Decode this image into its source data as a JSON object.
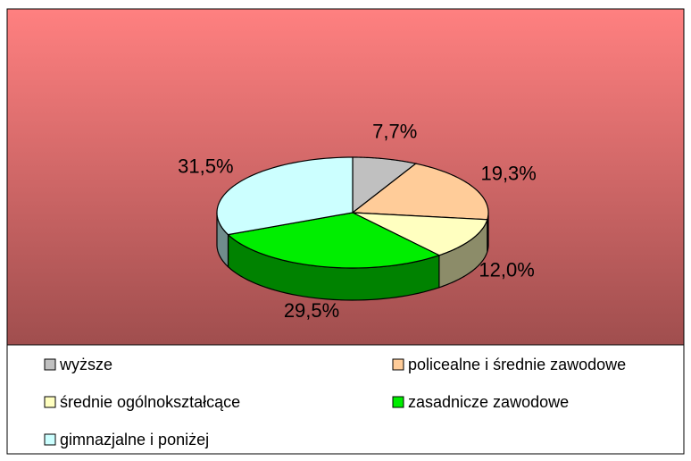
{
  "chart_data": {
    "type": "pie",
    "categories": [
      "wyższe",
      "policealne i średnie zawodowe",
      "średnie ogólnokształcące",
      "zasadnicze zawodowe",
      "gimnazjalne i poniżej"
    ],
    "values": [
      7.7,
      19.3,
      12.0,
      29.5,
      31.5
    ],
    "value_labels": [
      "7,7%",
      "19,3%",
      "12,0%",
      "29,5%",
      "31,5%"
    ],
    "colors": [
      "#c0c0c0",
      "#ffcc99",
      "#ffffc0",
      "#00ee00",
      "#ccffff"
    ],
    "legend": "bottom"
  }
}
